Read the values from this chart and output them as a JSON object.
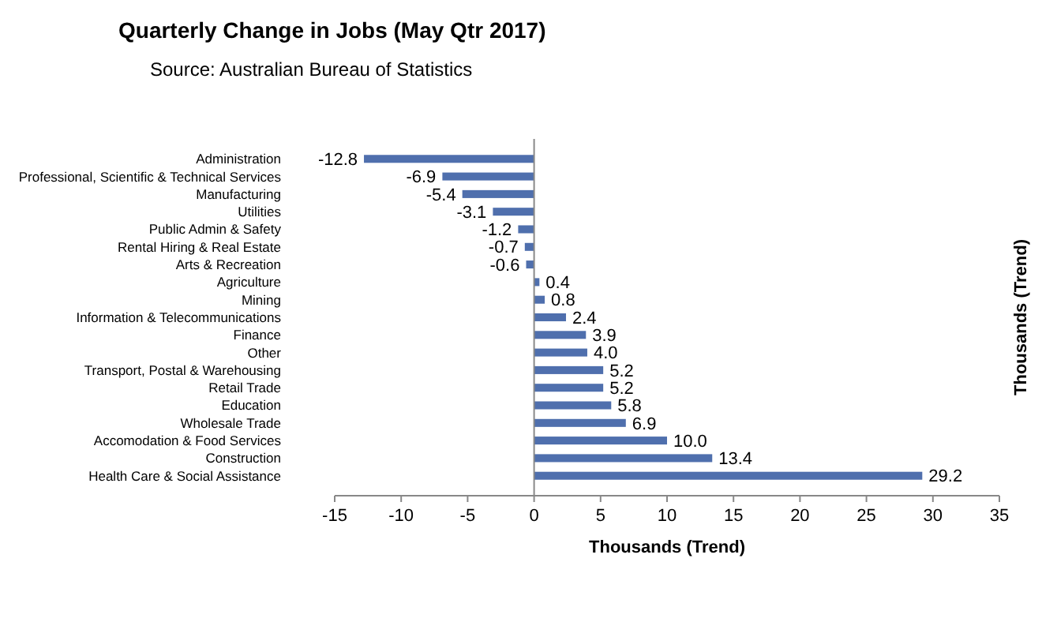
{
  "chart_data": {
    "type": "bar",
    "orientation": "horizontal",
    "title": "Quarterly Change in Jobs (May Qtr 2017)",
    "subtitle": "Source: Australian Bureau of Statistics",
    "xlabel": "Thousands (Trend)",
    "ylabel": "Thousands (Trend)",
    "categories": [
      "Administration",
      "Professional, Scientific & Technical Services",
      "Manufacturing",
      "Utilities",
      "Public Admin & Safety",
      "Rental Hiring & Real Estate",
      "Arts & Recreation",
      "Agriculture",
      "Mining",
      "Information & Telecommunications",
      "Finance",
      "Other",
      "Transport, Postal & Warehousing",
      "Retail Trade",
      "Education",
      "Wholesale Trade",
      "Accomodation & Food Services",
      "Construction",
      "Health Care & Social Assistance"
    ],
    "values": [
      -12.8,
      -6.9,
      -5.4,
      -3.1,
      -1.2,
      -0.7,
      -0.6,
      0.4,
      0.8,
      2.4,
      3.9,
      4.0,
      5.2,
      5.2,
      5.8,
      6.9,
      10.0,
      13.4,
      29.2
    ],
    "value_labels": [
      "-12.8",
      "-6.9",
      "-5.4",
      "-3.1",
      "-1.2",
      "-0.7",
      "-0.6",
      "0.4",
      "0.8",
      "2.4",
      "3.9",
      "4.0",
      "5.2",
      "5.2",
      "5.8",
      "6.9",
      "10.0",
      "13.4",
      "29.2"
    ],
    "color": "#4f6fad",
    "xlim": [
      -15,
      35
    ],
    "xticks": [
      -15,
      -10,
      -5,
      0,
      5,
      10,
      15,
      20,
      25,
      30,
      35
    ]
  }
}
